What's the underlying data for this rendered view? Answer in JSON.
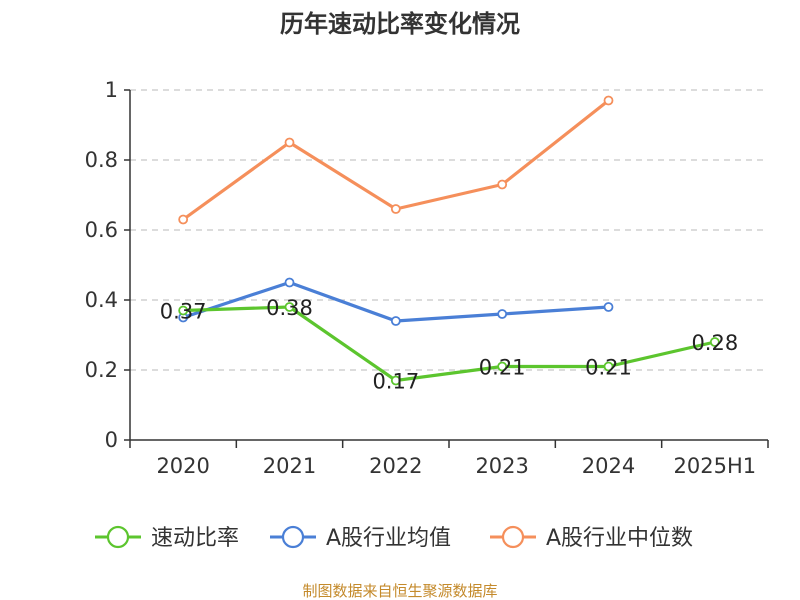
{
  "chart_data": {
    "type": "line",
    "title": "历年速动比率变化情况",
    "categories": [
      "2020",
      "2021",
      "2022",
      "2023",
      "2024",
      "2025H1"
    ],
    "ylim": [
      0,
      1
    ],
    "yticks": [
      0,
      0.2,
      0.4,
      0.6,
      0.8,
      1
    ],
    "ytick_labels": [
      "0",
      "0.2",
      "0.4",
      "0.6",
      "0.8",
      "1"
    ],
    "grid": true,
    "legend_position": "bottom",
    "series": [
      {
        "name": "速动比率",
        "color": "#5cc52e",
        "values": [
          0.37,
          0.38,
          0.17,
          0.21,
          0.21,
          0.28
        ],
        "labels": [
          "0.37",
          "0.38",
          "0.17",
          "0.21",
          "0.21",
          "0.28"
        ]
      },
      {
        "name": "A股行业均值",
        "color": "#4a7fd6",
        "values": [
          0.35,
          0.45,
          0.34,
          0.36,
          0.38,
          null
        ]
      },
      {
        "name": "A股行业中位数",
        "color": "#f58f5b",
        "values": [
          0.63,
          0.85,
          0.66,
          0.73,
          0.97,
          null
        ]
      }
    ],
    "source": "制图数据来自恒生聚源数据库",
    "source_color": "#c48a2b"
  }
}
